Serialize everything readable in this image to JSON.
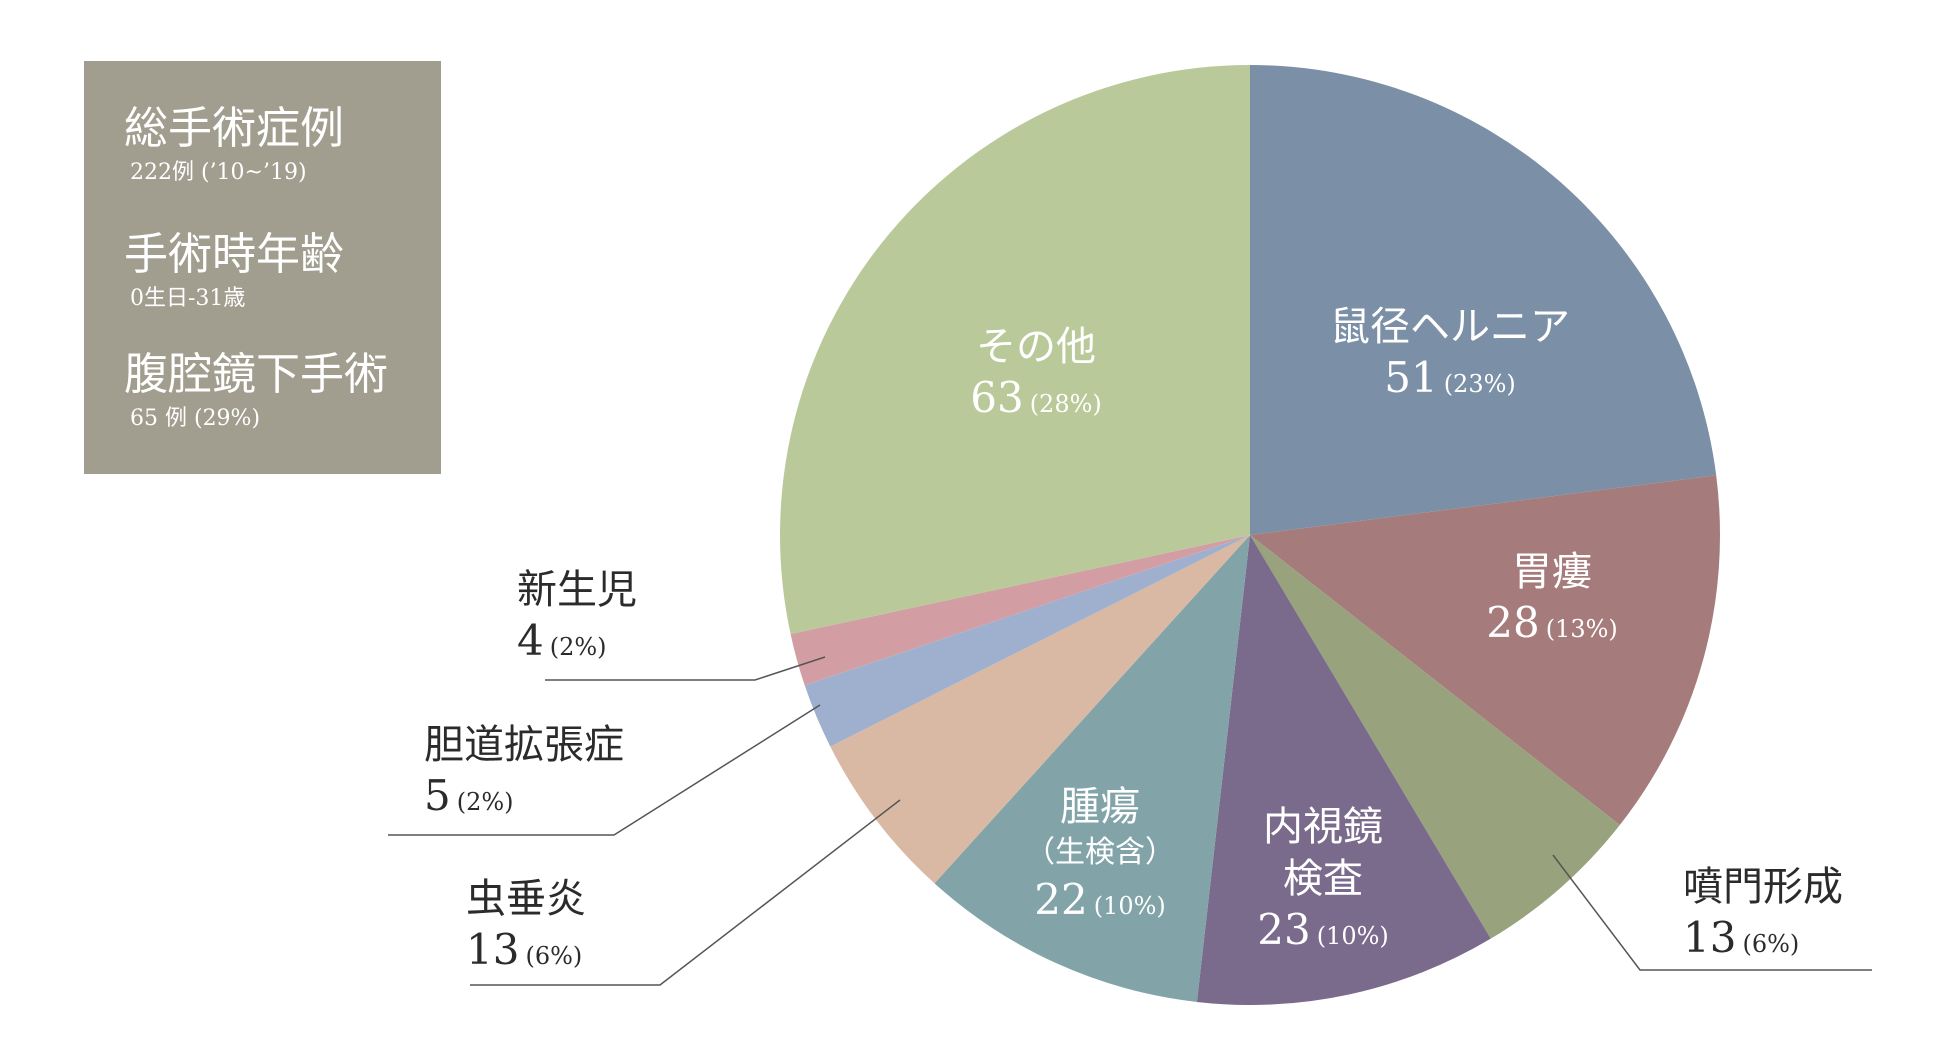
{
  "info": {
    "total_title": "総手術症例",
    "total_sub": "222例 (’10~’19)",
    "age_title": "手術時年齢",
    "age_sub": "0生日-31歳",
    "lap_title": "腹腔鏡下手術",
    "lap_sub": "65 例 (29%)"
  },
  "chart_data": {
    "type": "pie",
    "title": "",
    "start_angle_deg": 0,
    "direction": "clockwise",
    "slices": [
      {
        "name": "鼠径ヘルニア",
        "value": 51,
        "pct": "(23%)",
        "color": "#7b8fa6"
      },
      {
        "name": "胃瘻",
        "value": 28,
        "pct": "(13%)",
        "color": "#a57c7b"
      },
      {
        "name": "噴門形成",
        "value": 13,
        "pct": "(6%)",
        "color": "#98a27c"
      },
      {
        "name": "内視鏡\n検査",
        "value": 23,
        "pct": "(10%)",
        "color": "#7a6b8d"
      },
      {
        "name": "腫瘍",
        "sub": "（生検含）",
        "value": 22,
        "pct": "(10%)",
        "color": "#82a4a9"
      },
      {
        "name": "虫垂炎",
        "value": 13,
        "pct": "(6%)",
        "color": "#d9b9a3"
      },
      {
        "name": "胆道拡張症",
        "value": 5,
        "pct": "(2%)",
        "color": "#9fb0ce"
      },
      {
        "name": "新生児",
        "value": 4,
        "pct": "(2%)",
        "color": "#d29ea3"
      },
      {
        "name": "その他",
        "value": 63,
        "pct": "(28%)",
        "color": "#bac99a"
      }
    ]
  }
}
